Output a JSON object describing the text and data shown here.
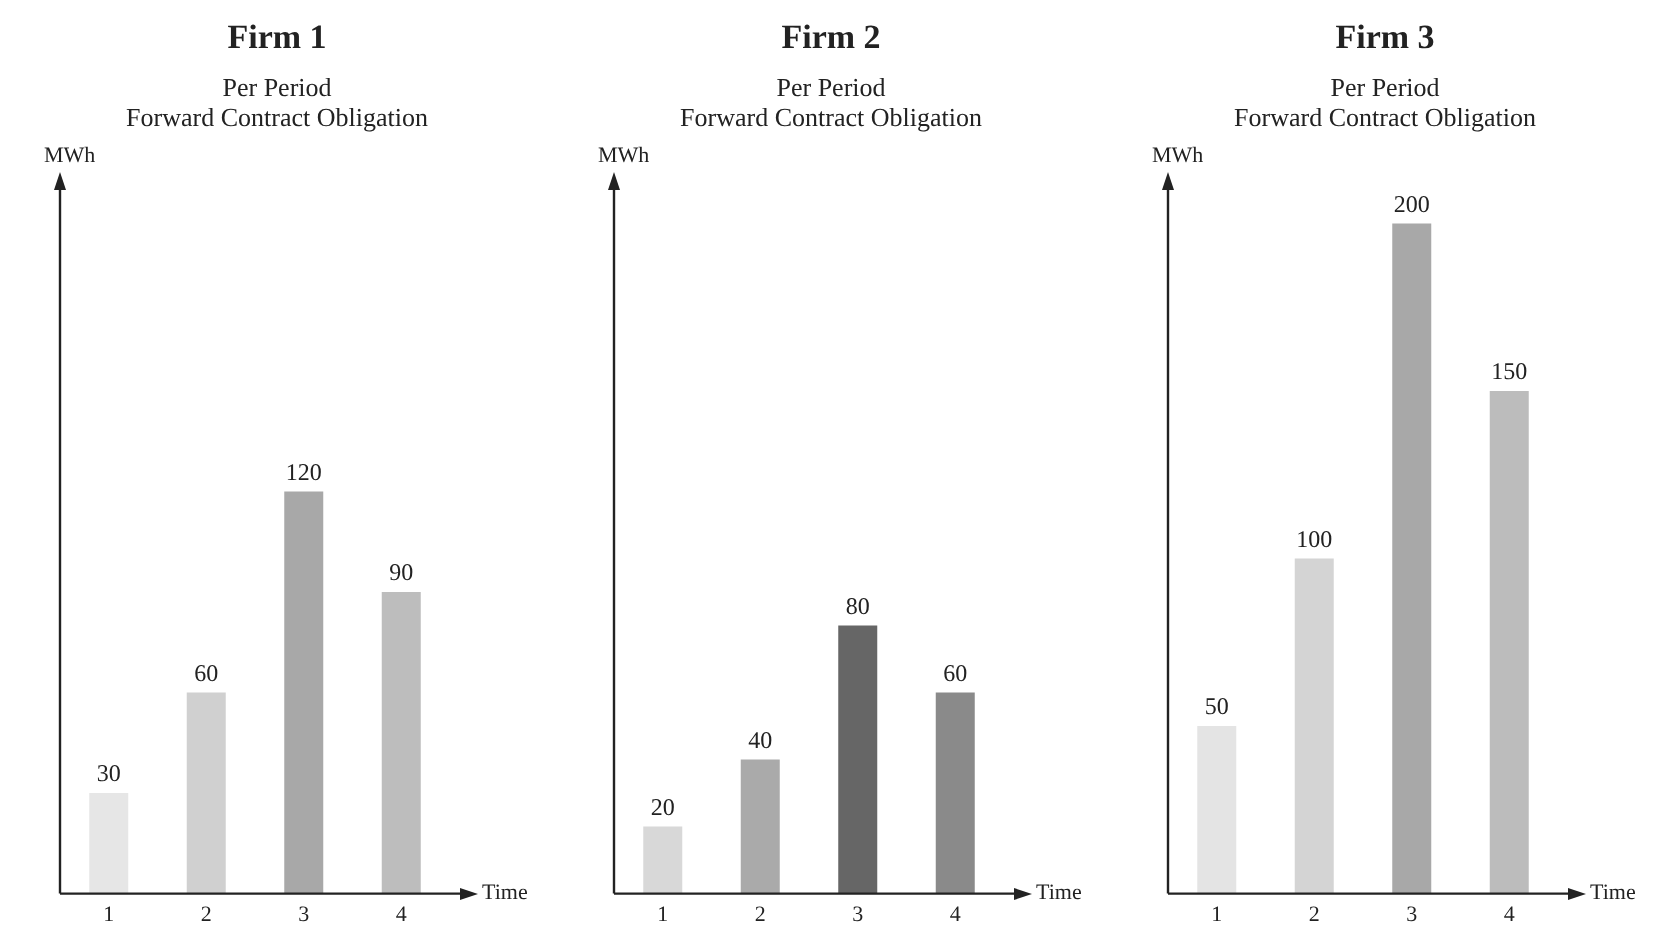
{
  "chart_data": [
    {
      "type": "bar",
      "title": "Firm 1",
      "subtitle": "Per Period\nForward Contract Obligation",
      "xlabel": "Time",
      "ylabel": "MWh",
      "categories": [
        "1",
        "2",
        "3",
        "4"
      ],
      "values": [
        30,
        60,
        120,
        90
      ],
      "colors": [
        "#e6e6e6",
        "#d0d0d0",
        "#a8a8a8",
        "#bdbdbd"
      ],
      "ylim": [
        0,
        210
      ],
      "data_labels": true,
      "grid": false,
      "legend": false,
      "tick_labels": "x"
    },
    {
      "type": "bar",
      "title": "Firm 2",
      "subtitle": "Per Period\nForward Contract Obligation",
      "xlabel": "Time",
      "ylabel": "MWh",
      "categories": [
        "1",
        "2",
        "3",
        "4"
      ],
      "values": [
        20,
        40,
        80,
        60
      ],
      "colors": [
        "#d8d8d8",
        "#aaaaaa",
        "#666666",
        "#8a8a8a"
      ],
      "ylim": [
        0,
        210
      ],
      "data_labels": true,
      "grid": false,
      "legend": false,
      "tick_labels": "x"
    },
    {
      "type": "bar",
      "title": "Firm 3",
      "subtitle": "Per Period\nForward Contract Obligation",
      "xlabel": "Time",
      "ylabel": "MWh",
      "categories": [
        "1",
        "2",
        "3",
        "4"
      ],
      "values": [
        50,
        100,
        200,
        150
      ],
      "colors": [
        "#e4e4e4",
        "#d4d4d4",
        "#a8a8a8",
        "#bcbcbc"
      ],
      "ylim": [
        0,
        210
      ],
      "data_labels": true,
      "grid": false,
      "legend": false,
      "tick_labels": "x"
    }
  ]
}
